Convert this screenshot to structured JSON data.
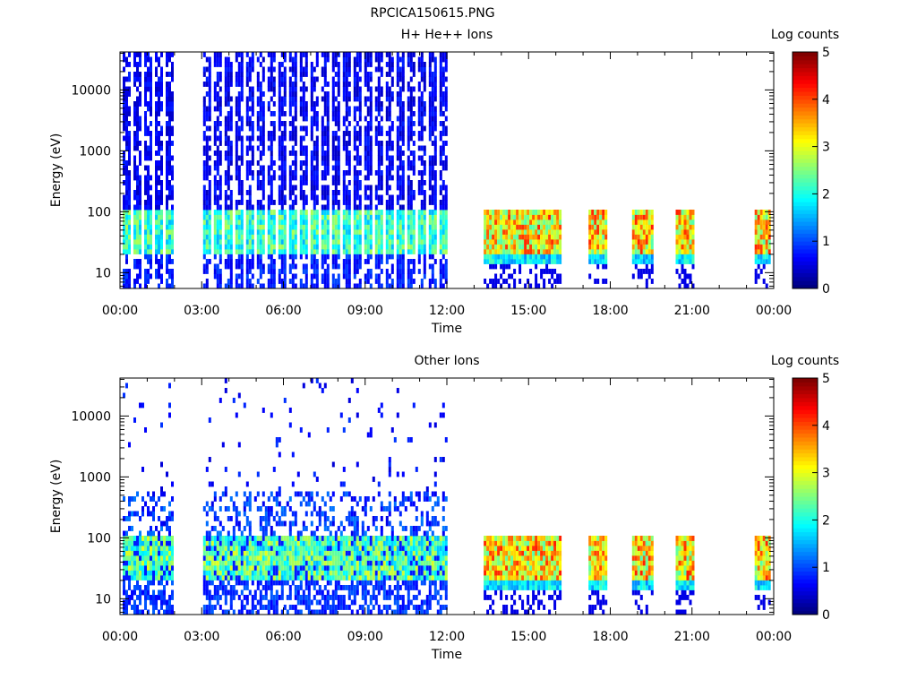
{
  "figure_title": "RPCICA150615.PNG",
  "chart_data": [
    {
      "type": "heatmap",
      "title": "H+ He++ Ions",
      "xlabel": "Time",
      "ylabel": "Energy (eV)",
      "x_ticks": [
        "00:00",
        "03:00",
        "06:00",
        "09:00",
        "12:00",
        "15:00",
        "18:00",
        "21:00",
        "00:00"
      ],
      "x_range_hours": [
        0,
        24
      ],
      "y_scale": "log",
      "y_ticks": [
        {
          "value": 10,
          "label": "10"
        },
        {
          "value": 100,
          "label": "100"
        },
        {
          "value": 1000,
          "label": "1000"
        },
        {
          "value": 10000,
          "label": "10000"
        }
      ],
      "y_range": [
        5.5,
        42000
      ],
      "colorbar": {
        "label": "Log counts",
        "range": [
          0,
          5
        ],
        "ticks": [
          "0",
          "1",
          "2",
          "3",
          "4",
          "5"
        ]
      },
      "data_intervals_hours": [
        [
          0.1,
          1.9
        ],
        [
          3.05,
          11.95
        ],
        [
          13.35,
          16.15
        ],
        [
          17.2,
          17.85
        ],
        [
          18.8,
          19.5
        ],
        [
          20.4,
          21.05
        ],
        [
          23.3,
          23.8
        ]
      ],
      "peak_energy_band_eV": [
        20,
        100
      ]
    },
    {
      "type": "heatmap",
      "title": "Other Ions",
      "xlabel": "Time",
      "ylabel": "Energy (eV)",
      "x_ticks": [
        "00:00",
        "03:00",
        "06:00",
        "09:00",
        "12:00",
        "15:00",
        "18:00",
        "21:00",
        "00:00"
      ],
      "x_range_hours": [
        0,
        24
      ],
      "y_scale": "log",
      "y_ticks": [
        {
          "value": 10,
          "label": "10"
        },
        {
          "value": 100,
          "label": "100"
        },
        {
          "value": 1000,
          "label": "1000"
        },
        {
          "value": 10000,
          "label": "10000"
        }
      ],
      "y_range": [
        5.5,
        42000
      ],
      "colorbar": {
        "label": "Log counts",
        "range": [
          0,
          5
        ],
        "ticks": [
          "0",
          "1",
          "2",
          "3",
          "4",
          "5"
        ]
      },
      "data_intervals_hours": [
        [
          0.1,
          1.9
        ],
        [
          3.05,
          11.95
        ],
        [
          13.35,
          16.15
        ],
        [
          17.2,
          17.85
        ],
        [
          18.8,
          19.5
        ],
        [
          20.4,
          21.05
        ],
        [
          23.3,
          23.8
        ]
      ],
      "peak_energy_band_eV": [
        20,
        100
      ]
    }
  ]
}
